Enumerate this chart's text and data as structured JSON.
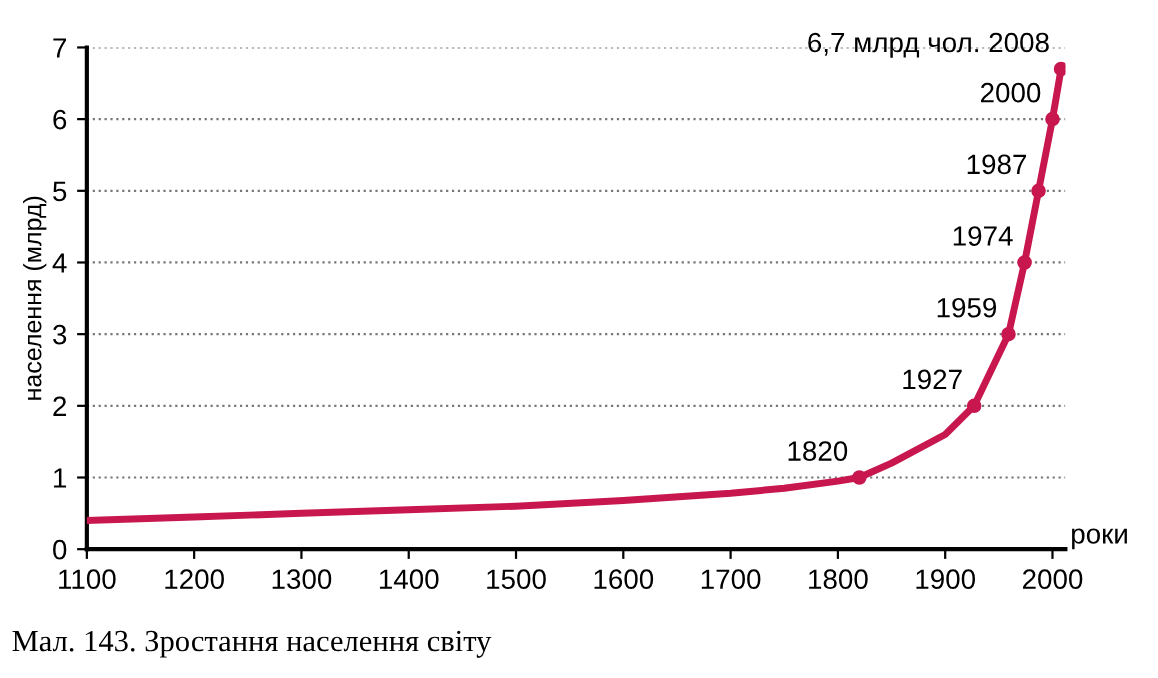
{
  "chart_data": {
    "type": "line",
    "ylabel": "населення (млрд)",
    "xlabel": "роки",
    "xlim": [
      1100,
      2012
    ],
    "xticks": [
      1100,
      1200,
      1300,
      1400,
      1500,
      1600,
      1700,
      1800,
      1900,
      2000
    ],
    "ylim": [
      0,
      7
    ],
    "yticks": [
      0,
      1,
      2,
      3,
      4,
      5,
      6,
      7
    ],
    "grid": "y",
    "series": [
      {
        "color": "#c8174f",
        "marker": "none",
        "x": [
          1100,
          1200,
          1300,
          1400,
          1500,
          1600,
          1700,
          1750,
          1800,
          1820,
          1850,
          1900,
          1927,
          1959,
          1974,
          1987,
          2000,
          2008
        ],
        "values": [
          0.4,
          0.45,
          0.5,
          0.55,
          0.6,
          0.68,
          0.78,
          0.85,
          0.95,
          1.0,
          1.2,
          1.6,
          2,
          3,
          4,
          5,
          6,
          6.7
        ]
      },
      {
        "type": "scatter",
        "color": "#c8174f",
        "marker": "circle",
        "x": [
          1820,
          1927,
          1959,
          1974,
          1987,
          2000,
          2008
        ],
        "values": [
          1.0,
          2,
          3,
          4,
          5,
          6,
          6.7
        ]
      }
    ],
    "annotations": [
      {
        "text": "1820",
        "x": 1820,
        "y": 1.0
      },
      {
        "text": "1927",
        "x": 1927,
        "y": 2
      },
      {
        "text": "1959",
        "x": 1959,
        "y": 3
      },
      {
        "text": "1974",
        "x": 1974,
        "y": 4
      },
      {
        "text": "1987",
        "x": 1987,
        "y": 5
      },
      {
        "text": "2000",
        "x": 2000,
        "y": 6
      },
      {
        "text": "6,7 млрд чол. 2008",
        "x": 2008,
        "y": 6.7
      },
      "Мал. 143. Зростання населення світу"
    ]
  }
}
